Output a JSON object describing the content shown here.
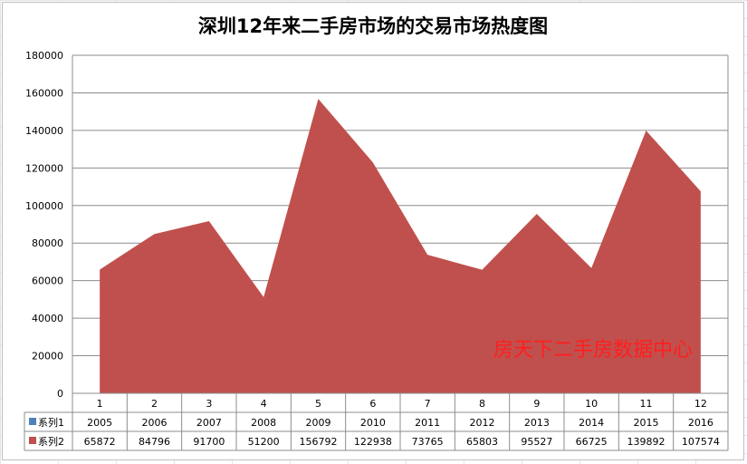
{
  "chart_data": {
    "type": "area",
    "title": "深圳12年来二手房市场的交易市场热度图",
    "categories": [
      "1",
      "2",
      "3",
      "4",
      "5",
      "6",
      "7",
      "8",
      "9",
      "10",
      "11",
      "12"
    ],
    "series": [
      {
        "name": "系列1",
        "values": [
          2005,
          2006,
          2007,
          2008,
          2009,
          2010,
          2011,
          2012,
          2013,
          2014,
          2015,
          2016
        ],
        "color": "#4f81bd"
      },
      {
        "name": "系列2",
        "values": [
          65872,
          84796,
          91700,
          51200,
          156792,
          122938,
          73765,
          65803,
          95527,
          66725,
          139892,
          107574
        ],
        "color": "#c0504d"
      }
    ],
    "yticks": [
      "0",
      "20000",
      "40000",
      "60000",
      "80000",
      "100000",
      "120000",
      "140000",
      "160000",
      "180000"
    ],
    "ylim": [
      0,
      180000
    ],
    "grid": true,
    "legend": "data-table",
    "watermark": "房天下二手房数据中心"
  }
}
